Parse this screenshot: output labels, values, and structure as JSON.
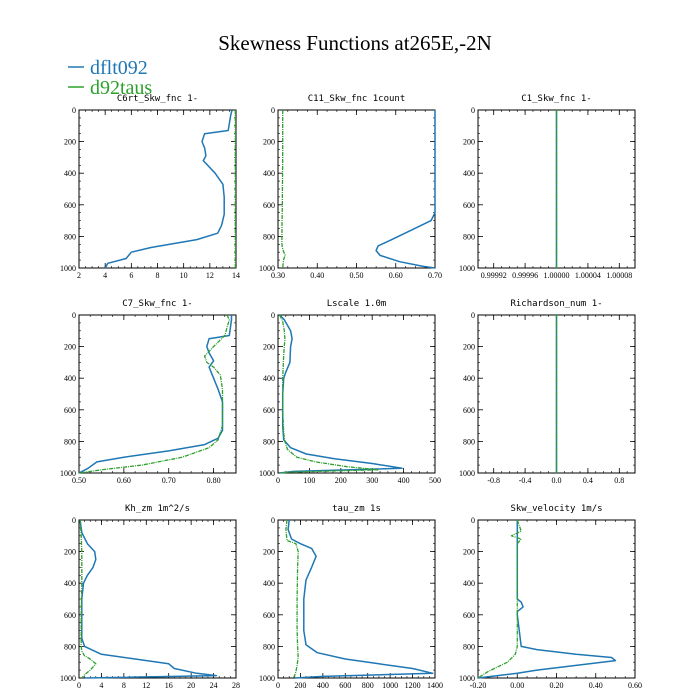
{
  "figure": {
    "title": "Skewness Functions at265E,-2N"
  },
  "legend": [
    {
      "name": "dflt092",
      "color": "#1f77b4"
    },
    {
      "name": "d92taus",
      "color": "#2ca02c"
    }
  ],
  "chart_data": [
    {
      "type": "line",
      "title": "C6rt_Skw_fnc  1-",
      "xlim": [
        2,
        14
      ],
      "ylim": [
        1000,
        0
      ],
      "xticks": [
        2,
        4,
        6,
        8,
        10,
        12,
        14
      ],
      "xtick_labels": [
        "2",
        "4",
        "6",
        "8",
        "10",
        "12",
        "14"
      ],
      "yticks": [
        0,
        200,
        400,
        600,
        800,
        1000
      ],
      "series": [
        {
          "name": "dflt092",
          "x": [
            13.7,
            13.6,
            13.4,
            11.6,
            11.4,
            11.6,
            11.7,
            11.5,
            12.4,
            13.0,
            13.1,
            13.1,
            12.9,
            12.6,
            11.0,
            7.5,
            6.0,
            5.6,
            4.2,
            4.0
          ],
          "y": [
            0,
            30,
            130,
            150,
            200,
            240,
            290,
            320,
            400,
            470,
            550,
            660,
            730,
            780,
            820,
            870,
            900,
            940,
            970,
            1000
          ]
        },
        {
          "name": "d92taus",
          "x": [
            13.95,
            13.95,
            13.95,
            13.95
          ],
          "y": [
            0,
            300,
            700,
            1000
          ]
        }
      ]
    },
    {
      "type": "line",
      "title": "C11_Skw_fnc  1count",
      "xlim": [
        0.3,
        0.7
      ],
      "ylim": [
        1000,
        0
      ],
      "xticks": [
        0.3,
        0.4,
        0.5,
        0.6,
        0.7
      ],
      "xtick_labels": [
        "0.30",
        "0.40",
        "0.50",
        "0.60",
        "0.70"
      ],
      "yticks": [
        0,
        200,
        400,
        600,
        800,
        1000
      ],
      "series": [
        {
          "name": "dflt092",
          "x": [
            0.7,
            0.7,
            0.7,
            0.7,
            0.69,
            0.64,
            0.59,
            0.555,
            0.55,
            0.56,
            0.61,
            0.67,
            0.7
          ],
          "y": [
            0,
            200,
            500,
            650,
            700,
            760,
            820,
            860,
            890,
            920,
            960,
            990,
            1000
          ]
        },
        {
          "name": "d92taus",
          "x": [
            0.312,
            0.312,
            0.311,
            0.31,
            0.31,
            0.312,
            0.318,
            0.314,
            0.312
          ],
          "y": [
            0,
            300,
            600,
            800,
            850,
            880,
            920,
            950,
            1000
          ]
        }
      ]
    },
    {
      "type": "line",
      "title": "C1_Skw_fnc  1-",
      "xlim": [
        0.9999,
        1.0001
      ],
      "ylim": [
        1000,
        0
      ],
      "xticks": [
        0.99992,
        0.99996,
        1.0,
        1.00004,
        1.00008
      ],
      "xtick_labels": [
        "0.99992",
        "0.99996",
        "1.00000",
        "1.00004",
        "1.00008"
      ],
      "yticks": [
        0,
        200,
        400,
        600,
        800,
        1000
      ],
      "series": [
        {
          "name": "dflt092",
          "x": [
            1.0,
            1.0
          ],
          "y": [
            0,
            1000
          ]
        },
        {
          "name": "d92taus",
          "x": [
            1.0,
            1.0
          ],
          "y": [
            0,
            1000
          ]
        }
      ]
    },
    {
      "type": "line",
      "title": "C7_Skw_fnc  1-",
      "xlim": [
        0.5,
        0.85
      ],
      "ylim": [
        1000,
        0
      ],
      "xticks": [
        0.5,
        0.6,
        0.7,
        0.8
      ],
      "xtick_labels": [
        "0.50",
        "0.60",
        "0.70",
        "0.80"
      ],
      "yticks": [
        0,
        200,
        400,
        600,
        800,
        1000
      ],
      "series": [
        {
          "name": "dflt092",
          "x": [
            0.84,
            0.84,
            0.835,
            0.79,
            0.785,
            0.79,
            0.8,
            0.79,
            0.8,
            0.81,
            0.82,
            0.82,
            0.82,
            0.81,
            0.78,
            0.7,
            0.6,
            0.54,
            0.52,
            0.5
          ],
          "y": [
            0,
            30,
            130,
            150,
            200,
            240,
            290,
            330,
            400,
            470,
            550,
            660,
            730,
            780,
            820,
            860,
            900,
            930,
            970,
            1000
          ]
        },
        {
          "name": "d92taus",
          "x": [
            0.83,
            0.835,
            0.825,
            0.8,
            0.78,
            0.785,
            0.8,
            0.815,
            0.82,
            0.82,
            0.82,
            0.81,
            0.79,
            0.73,
            0.64,
            0.55,
            0.5
          ],
          "y": [
            0,
            30,
            130,
            200,
            260,
            300,
            330,
            380,
            470,
            600,
            700,
            790,
            840,
            900,
            950,
            980,
            1000
          ]
        }
      ]
    },
    {
      "type": "line",
      "title": "Lscale  1.0m",
      "xlim": [
        0,
        500
      ],
      "ylim": [
        1000,
        0
      ],
      "xticks": [
        0,
        100,
        200,
        300,
        400,
        500
      ],
      "xtick_labels": [
        "0",
        "100",
        "200",
        "300",
        "400",
        "500"
      ],
      "yticks": [
        0,
        200,
        400,
        600,
        800,
        1000
      ],
      "series": [
        {
          "name": "dflt092",
          "x": [
            5,
            20,
            40,
            45,
            40,
            38,
            25,
            18,
            15,
            15,
            18,
            40,
            90,
            180,
            300,
            395,
            50,
            5
          ],
          "y": [
            0,
            30,
            100,
            150,
            200,
            300,
            360,
            400,
            500,
            700,
            790,
            840,
            880,
            910,
            940,
            970,
            990,
            1000
          ]
        },
        {
          "name": "d92taus",
          "x": [
            5,
            15,
            20,
            22,
            20,
            18,
            15,
            15,
            18,
            22,
            30,
            60,
            120,
            220,
            320,
            30,
            5
          ],
          "y": [
            0,
            40,
            100,
            150,
            200,
            250,
            400,
            600,
            750,
            800,
            850,
            900,
            930,
            960,
            980,
            995,
            1000
          ]
        }
      ]
    },
    {
      "type": "line",
      "title": "Richardson_num  1-",
      "xlim": [
        -1.0,
        1.0
      ],
      "ylim": [
        1000,
        0
      ],
      "xticks": [
        -0.8,
        -0.4,
        0.0,
        0.4,
        0.8
      ],
      "xtick_labels": [
        "-0.8",
        "-0.4",
        "0.0",
        "0.4",
        "0.8"
      ],
      "yticks": [
        0,
        200,
        400,
        600,
        800,
        1000
      ],
      "series": [
        {
          "name": "dflt092",
          "x": [
            0.0,
            0.0
          ],
          "y": [
            0,
            1000
          ]
        },
        {
          "name": "d92taus",
          "x": [
            0.0,
            0.0
          ],
          "y": [
            0,
            1000
          ]
        }
      ]
    },
    {
      "type": "line",
      "title": "Kh_zm  1m^2/s",
      "xlim": [
        0,
        28
      ],
      "ylim": [
        1000,
        0
      ],
      "xticks": [
        0,
        4,
        8,
        12,
        16,
        20,
        24,
        28
      ],
      "xtick_labels": [
        "0",
        "4",
        "8",
        "12",
        "16",
        "20",
        "24",
        "28"
      ],
      "yticks": [
        0,
        200,
        400,
        600,
        800,
        1000
      ],
      "series": [
        {
          "name": "dflt092",
          "x": [
            0.2,
            0.5,
            1.5,
            2.8,
            3.0,
            2.5,
            1.5,
            0.8,
            0.5,
            0.5,
            1.0,
            4.0,
            10.0,
            16.0,
            17.0,
            21.0,
            24.5,
            1.0
          ],
          "y": [
            0,
            80,
            150,
            200,
            250,
            300,
            350,
            400,
            500,
            750,
            800,
            850,
            880,
            910,
            940,
            970,
            985,
            1000
          ]
        },
        {
          "name": "d92taus",
          "x": [
            0.2,
            0.4,
            0.5,
            0.5,
            0.4,
            0.4,
            0.5,
            1.0,
            2.0,
            3.0,
            2.0,
            1.0,
            0.5
          ],
          "y": [
            0,
            100,
            200,
            400,
            600,
            800,
            830,
            860,
            880,
            910,
            950,
            980,
            1000
          ]
        }
      ]
    },
    {
      "type": "line",
      "title": "tau_zm  1s",
      "xlim": [
        0,
        1400
      ],
      "ylim": [
        1000,
        0
      ],
      "xticks": [
        0,
        200,
        400,
        600,
        800,
        1000,
        1200,
        1400
      ],
      "xtick_labels": [
        "0",
        "200",
        "400",
        "600",
        "800",
        "1000",
        "1200",
        "1400"
      ],
      "yticks": [
        0,
        200,
        400,
        600,
        800,
        1000
      ],
      "series": [
        {
          "name": "dflt092",
          "x": [
            100,
            90,
            120,
            200,
            300,
            340,
            300,
            250,
            230,
            230,
            250,
            350,
            600,
            900,
            1200,
            1380,
            400,
            150
          ],
          "y": [
            0,
            60,
            120,
            150,
            180,
            230,
            300,
            380,
            500,
            700,
            790,
            840,
            880,
            910,
            940,
            970,
            990,
            1000
          ]
        },
        {
          "name": "d92taus",
          "x": [
            80,
            70,
            80,
            160,
            180,
            175,
            170,
            170,
            175,
            180,
            170,
            160,
            140
          ],
          "y": [
            0,
            60,
            130,
            150,
            200,
            300,
            500,
            700,
            800,
            870,
            920,
            960,
            1000
          ]
        }
      ]
    },
    {
      "type": "line",
      "title": "Skw_velocity  1m/s",
      "xlim": [
        -0.2,
        0.6
      ],
      "ylim": [
        1000,
        0
      ],
      "xticks": [
        -0.2,
        0.0,
        0.2,
        0.4,
        0.6
      ],
      "xtick_labels": [
        "-0.20",
        "0.00",
        "0.20",
        "0.40",
        "0.60"
      ],
      "yticks": [
        0,
        200,
        400,
        600,
        800,
        1000
      ],
      "series": [
        {
          "name": "dflt092",
          "x": [
            0.0,
            0.0,
            0.0,
            0.0,
            0.0,
            0.02,
            0.03,
            0.0,
            0.0,
            0.02,
            0.1,
            0.3,
            0.48,
            0.5,
            0.3,
            0.1,
            0.0,
            -0.1,
            -0.2
          ],
          "y": [
            0,
            100,
            300,
            450,
            500,
            520,
            550,
            580,
            600,
            800,
            820,
            850,
            870,
            890,
            920,
            950,
            970,
            985,
            1000
          ]
        },
        {
          "name": "d92taus",
          "x": [
            0.0,
            0.02,
            -0.03,
            0.02,
            0.0,
            0.0,
            0.0,
            0.0,
            -0.01,
            -0.05,
            -0.1,
            -0.15,
            -0.2
          ],
          "y": [
            0,
            70,
            100,
            120,
            150,
            300,
            600,
            800,
            850,
            900,
            930,
            960,
            1000
          ]
        }
      ]
    }
  ]
}
